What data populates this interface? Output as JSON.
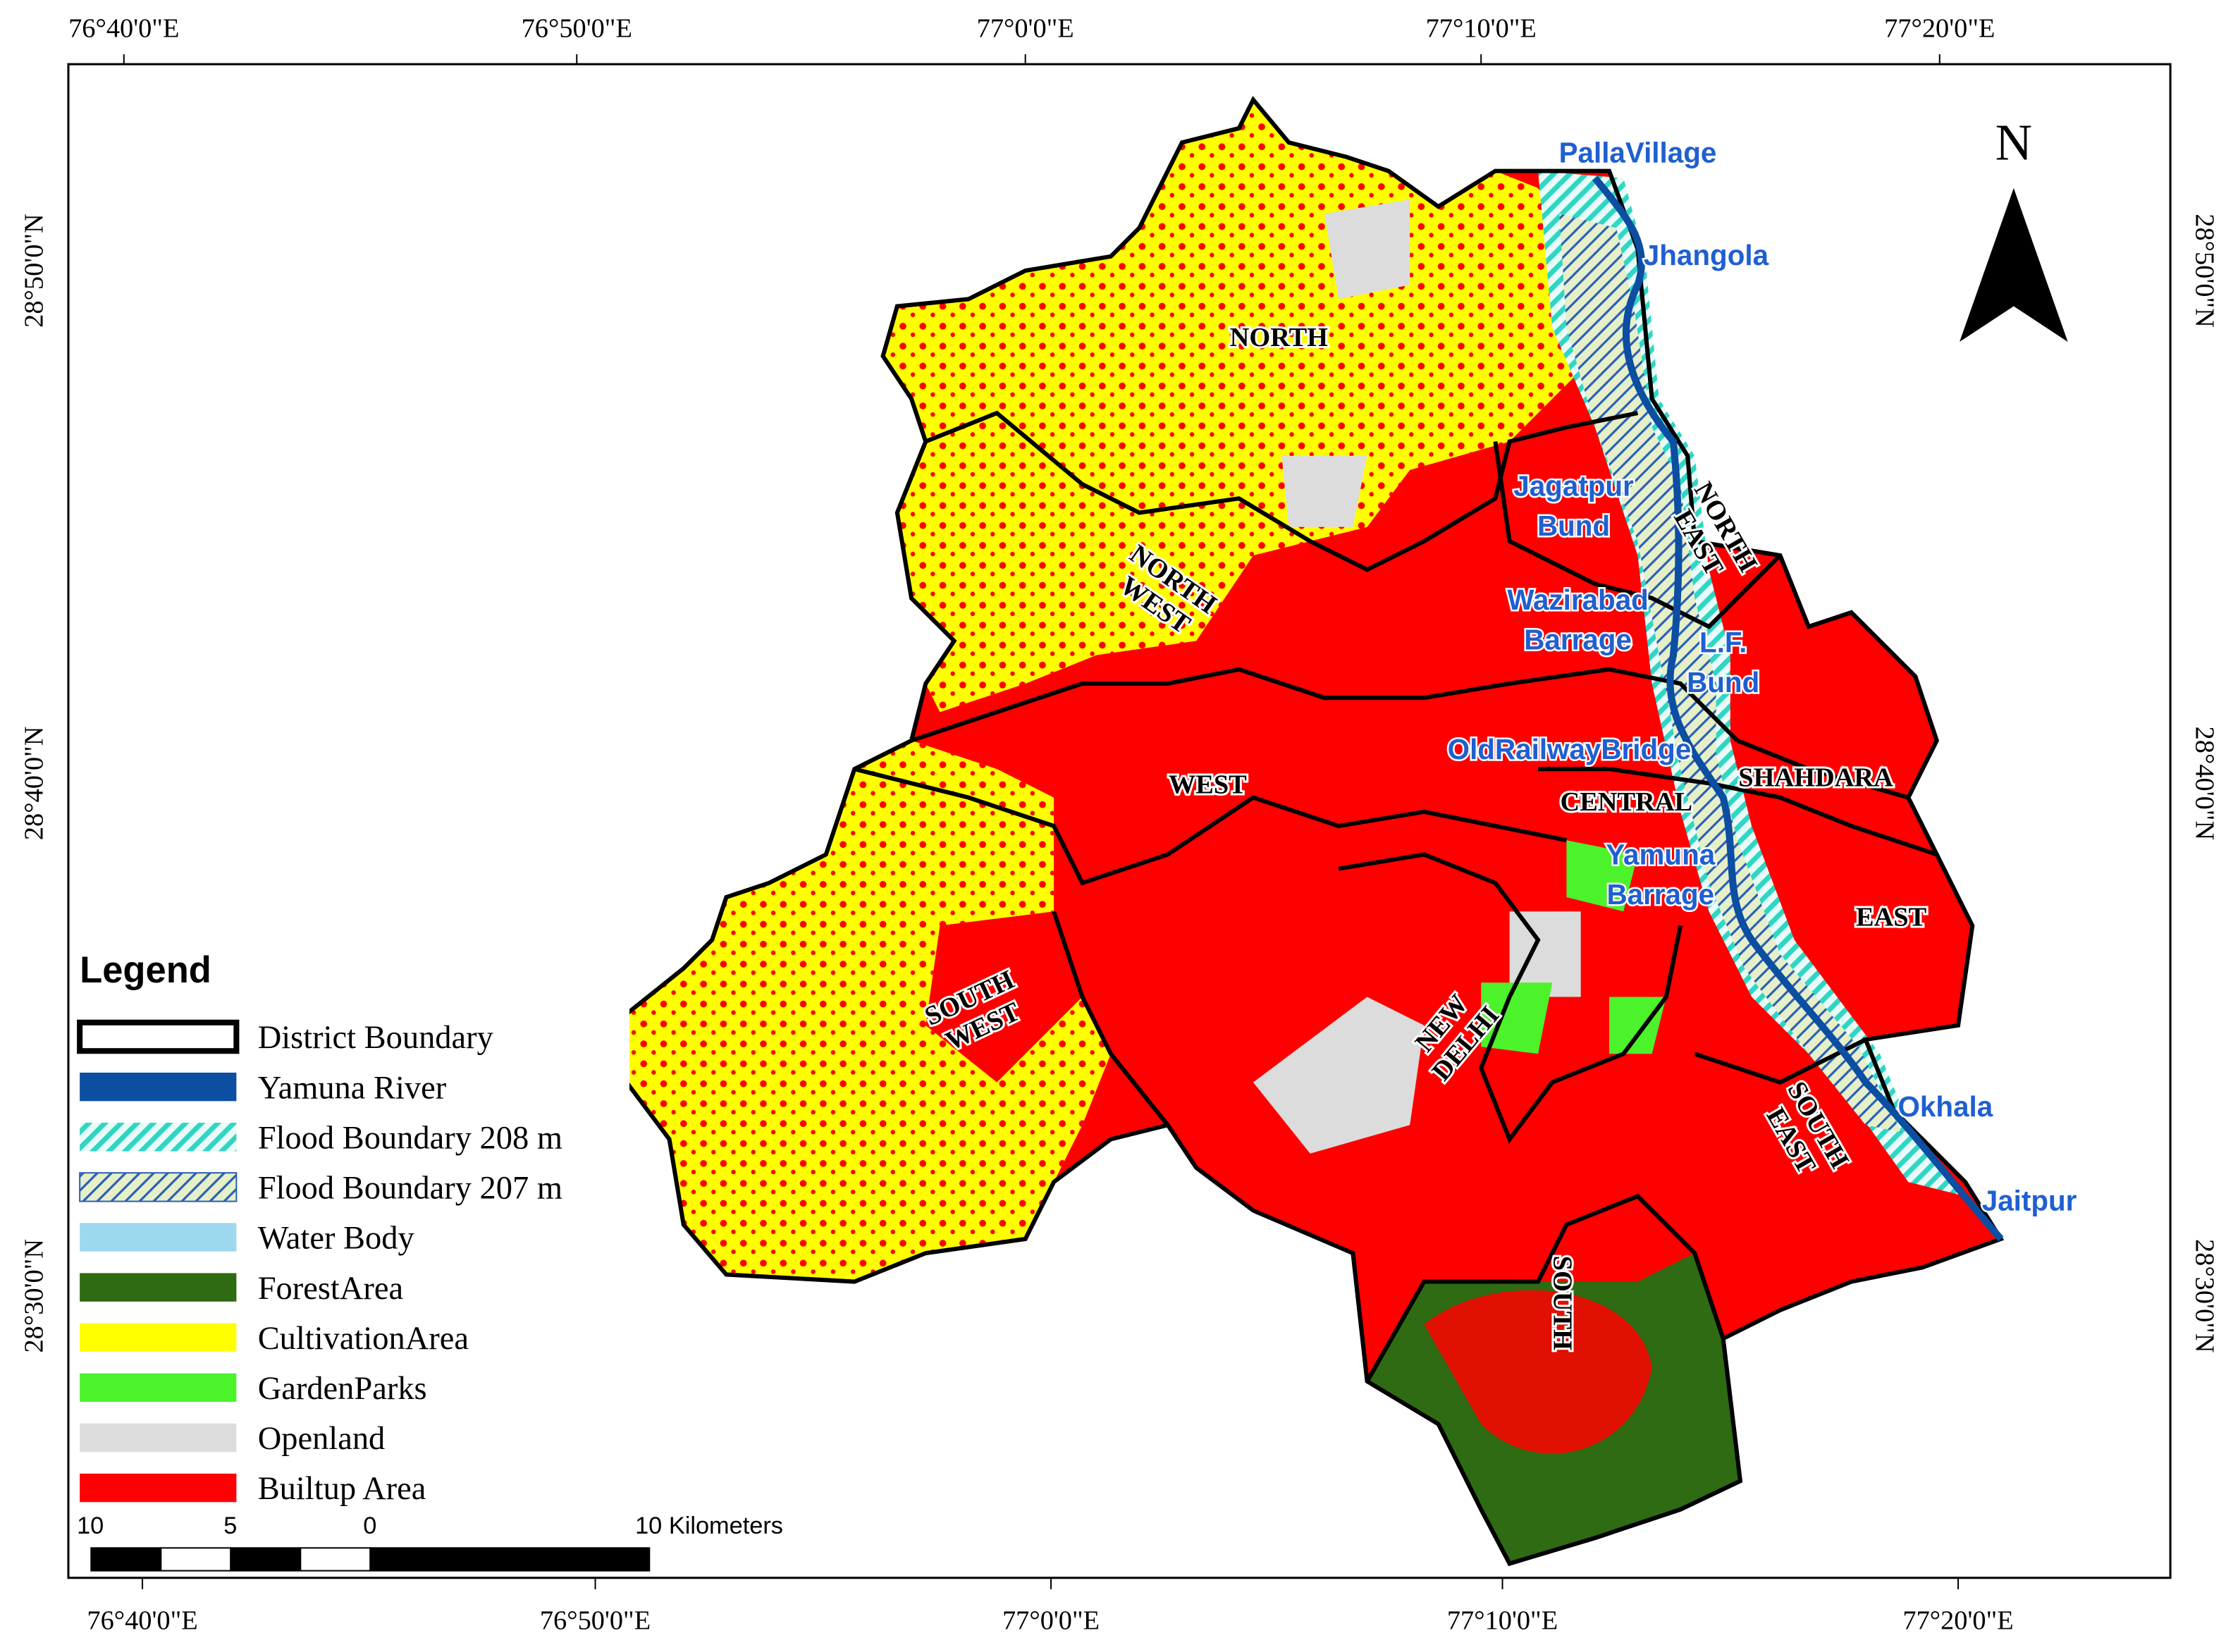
{
  "map": {
    "top_axis": [
      "76°40'0\"E",
      "76°50'0\"E",
      "77°0'0\"E",
      "77°10'0\"E",
      "77°20'0\"E"
    ],
    "bottom_axis": [
      "76°40'0\"E",
      "76°50'0\"E",
      "77°0'0\"E",
      "77°10'0\"E",
      "77°20'0\"E"
    ],
    "left_axis": [
      "28°50'0\"N",
      "28°40'0\"N",
      "28°30'0\"N"
    ],
    "right_axis": [
      "28°50'0\"N",
      "28°40'0\"N",
      "28°30'0\"N"
    ],
    "north_arrow": "N",
    "districts": [
      {
        "lines": [
          "NORTH"
        ]
      },
      {
        "lines": [
          "NORTH",
          "WEST"
        ]
      },
      {
        "lines": [
          "WEST"
        ]
      },
      {
        "lines": [
          "SOUTH",
          "WEST"
        ]
      },
      {
        "lines": [
          "NEW",
          "DELHI"
        ]
      },
      {
        "lines": [
          "SOUTH"
        ]
      },
      {
        "lines": [
          "SOUTH",
          "EAST"
        ]
      },
      {
        "lines": [
          "EAST"
        ]
      },
      {
        "lines": [
          "CENTRAL"
        ]
      },
      {
        "lines": [
          "SHAHDARA"
        ]
      },
      {
        "lines": [
          "NORTH",
          "EAST"
        ]
      }
    ],
    "places": [
      {
        "lines": [
          "PallaVillage"
        ]
      },
      {
        "lines": [
          "Jhangola"
        ]
      },
      {
        "lines": [
          "Jagatpur",
          "Bund"
        ]
      },
      {
        "lines": [
          "Wazirabad",
          "Barrage"
        ]
      },
      {
        "lines": [
          "L.F.",
          "Bund"
        ]
      },
      {
        "lines": [
          "OldRailwayBridge"
        ]
      },
      {
        "lines": [
          "Yamuna",
          "Barrage"
        ]
      },
      {
        "lines": [
          "Okhala"
        ]
      },
      {
        "lines": [
          "Jaitpur"
        ]
      }
    ],
    "legend": {
      "title": "Legend",
      "items": [
        {
          "name": "District Boundary",
          "color": "#ffffff"
        },
        {
          "name": "Yamuna River",
          "color": "#0b4ea2"
        },
        {
          "name": "Flood Boundary 208 m",
          "color": "#2fd6c4"
        },
        {
          "name": "Flood Boundary 207 m",
          "color": "#2c5fb8"
        },
        {
          "name": "Water Body",
          "color": "#9ed8ef"
        },
        {
          "name": "ForestArea",
          "color": "#2e6b12"
        },
        {
          "name": "CultivationArea",
          "color": "#ffff00"
        },
        {
          "name": "GardenParks",
          "color": "#4cf22a"
        },
        {
          "name": "Openland",
          "color": "#dcdcdc"
        },
        {
          "name": "Builtup Area",
          "color": "#ff0000"
        }
      ]
    },
    "scale_bar": {
      "labels": [
        "10",
        "5",
        "0",
        "10 Kilometers"
      ]
    }
  }
}
